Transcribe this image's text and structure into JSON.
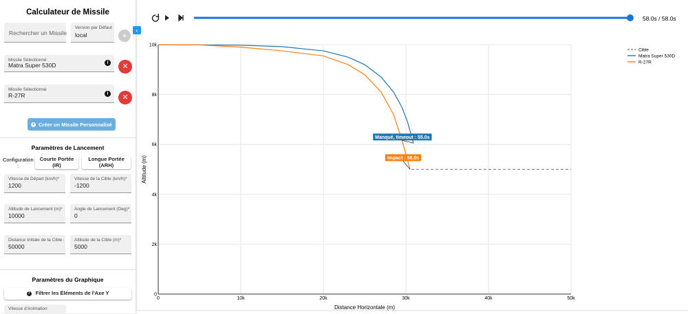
{
  "sidebar": {
    "title": "Calculateur de Missile",
    "search_placeholder": "Rechercher un Missile",
    "version": {
      "label": "Version par Défaut",
      "value": "local"
    },
    "selected_missiles": [
      {
        "label": "Missile Sélectionné",
        "value": "Matra Super 530D"
      },
      {
        "label": "Missile Sélectionné",
        "value": "R-27R"
      }
    ],
    "create_button": "Créer un Missile Personnalisé",
    "launch_section": {
      "title": "Paramètres de Lancement",
      "configuration_label": "Configuration :",
      "configurations": [
        "Courte Portée (IR)",
        "Longue Portée (ARH)"
      ],
      "fields": [
        {
          "label": "Vitesse de Départ (km/h)*",
          "value": "1200"
        },
        {
          "label": "Vitesse de la Cible (km/h)*",
          "value": "-1200"
        },
        {
          "label": "Altitude de Lancement (m)*",
          "value": "10000"
        },
        {
          "label": "Angle de Lancement (Deg)*",
          "value": "0"
        },
        {
          "label": "Distance Initiale de la Cible (m)",
          "value": "50000"
        },
        {
          "label": "Altitude de la Cible (m)*",
          "value": "5000"
        }
      ]
    },
    "graph_section": {
      "title": "Paramètres du Graphique",
      "filter_button": "Filtrer les Éléments de l'Axe Y",
      "animation_speed_label": "Vitesse d'Animation"
    }
  },
  "player": {
    "time_label": "58.0s / 58.0s"
  },
  "chart_data": {
    "type": "line",
    "x_label": "Distance Horizontale (m)",
    "y_label": "Altitude (m)",
    "xlim": [
      0,
      50000
    ],
    "ylim": [
      0,
      10000
    ],
    "xticks": [
      0,
      {
        "value": 10000,
        "label": "10k"
      },
      {
        "value": 20000,
        "label": "20k"
      },
      {
        "value": 30000,
        "label": "30k"
      },
      {
        "value": 40000,
        "label": "40k"
      },
      {
        "value": 50000,
        "label": "50k"
      }
    ],
    "yticks": [
      0,
      {
        "value": 2000,
        "label": "2k"
      },
      {
        "value": 4000,
        "label": "4k"
      },
      {
        "value": 6000,
        "label": "6k"
      },
      {
        "value": 8000,
        "label": "8k"
      },
      {
        "value": 10000,
        "label": "10k"
      }
    ],
    "grid": true,
    "legend": "top-right",
    "series": [
      {
        "name": "Cible",
        "color": "#888888",
        "dashed": true,
        "x": [
          30667,
          50000
        ],
        "values": [
          5000,
          5000
        ]
      },
      {
        "name": "Matra Super 530D",
        "color": "#1f77b4",
        "x": [
          0,
          10000,
          15000,
          20000,
          23000,
          25000,
          27000,
          28500,
          29500,
          30200,
          30700,
          30900
        ],
        "values": [
          10000,
          9980,
          9920,
          9750,
          9500,
          9200,
          8700,
          8100,
          7500,
          6900,
          6300,
          6050
        ]
      },
      {
        "name": "R-27R",
        "color": "#ff7f0e",
        "x": [
          0,
          5000,
          10000,
          15000,
          20000,
          23000,
          25000,
          27000,
          28500,
          29500,
          30500
        ],
        "values": [
          10000,
          9990,
          9900,
          9750,
          9550,
          9200,
          8800,
          8100,
          7200,
          6200,
          5000
        ]
      }
    ],
    "annotations": [
      {
        "series": 1,
        "text": "Manqué, timeout : 55.0s"
      },
      {
        "series": 2,
        "text": "Impact : 58.0s"
      }
    ]
  }
}
